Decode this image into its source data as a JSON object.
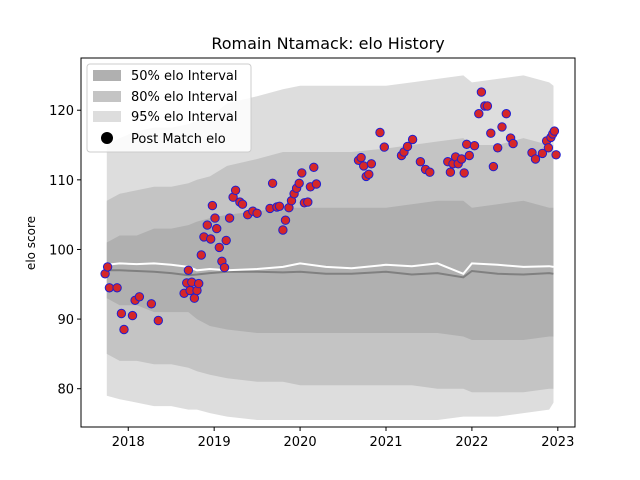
{
  "chart_data": {
    "type": "scatter",
    "title": "Romain Ntamack: elo History",
    "xlabel": "",
    "ylabel": "elo score",
    "xlim": [
      2017.45,
      2023.2
    ],
    "ylim": [
      74.5,
      127.5
    ],
    "x_ticks": [
      2018,
      2019,
      2020,
      2021,
      2022,
      2023
    ],
    "x_tick_labels": [
      "2018",
      "2019",
      "2020",
      "2021",
      "2022",
      "2023"
    ],
    "y_ticks": [
      80,
      90,
      100,
      110,
      120
    ],
    "y_tick_labels": [
      "80",
      "90",
      "100",
      "110",
      "120"
    ],
    "legend": {
      "placement": "top-left",
      "entries": [
        {
          "label": "50% elo Interval",
          "color": "#b0b0b0",
          "kind": "patch"
        },
        {
          "label": "80% elo Interval",
          "color": "#c4c4c4",
          "kind": "patch"
        },
        {
          "label": "95% elo Interval",
          "color": "#dddddd",
          "kind": "patch"
        },
        {
          "label": "Post Match elo",
          "color": "#000000",
          "kind": "marker"
        }
      ]
    },
    "bands": {
      "x": [
        2017.75,
        2017.9,
        2018.1,
        2018.3,
        2018.5,
        2018.7,
        2018.8,
        2018.95,
        2019.15,
        2019.5,
        2019.8,
        2020.0,
        2020.3,
        2020.6,
        2021.0,
        2021.3,
        2021.6,
        2021.9,
        2022.0,
        2022.3,
        2022.6,
        2022.9,
        2022.95
      ],
      "p95_high": [
        115,
        116,
        117,
        117.5,
        117.5,
        118,
        118.5,
        119,
        121,
        122,
        123,
        123.5,
        123.5,
        123.5,
        123.5,
        124,
        124.5,
        125,
        124,
        124.5,
        125,
        124,
        123.5
      ],
      "p80_high": [
        107,
        108,
        108.5,
        109,
        109,
        109.5,
        110,
        110.5,
        112,
        113,
        114,
        114,
        114,
        114,
        114.5,
        115,
        115.5,
        116,
        115,
        115,
        116,
        115,
        115
      ],
      "p50_high": [
        101,
        102,
        102,
        103,
        103,
        103.5,
        104,
        104.5,
        105,
        105.5,
        106,
        106,
        106,
        106,
        106,
        106.5,
        107,
        107,
        106,
        106.5,
        107,
        106,
        106
      ],
      "p50_low": [
        93,
        92,
        92,
        91,
        91,
        91,
        90,
        89,
        88.5,
        88,
        88,
        88,
        88,
        88,
        88,
        88,
        88,
        87.5,
        87,
        87,
        87,
        87.5,
        87.5
      ],
      "p80_low": [
        85,
        84,
        84,
        83.5,
        83.5,
        83,
        82.5,
        82,
        81.5,
        81,
        81,
        80.5,
        80.5,
        80.5,
        80.5,
        80.5,
        80,
        80,
        79.5,
        79.5,
        79.5,
        80,
        80
      ],
      "p95_low": [
        79,
        78.5,
        78,
        77.5,
        77.5,
        77,
        77,
        76.5,
        76,
        75.5,
        75.5,
        75.5,
        75.5,
        75.5,
        75.5,
        75.5,
        75.5,
        76,
        76,
        76,
        76.5,
        77,
        78
      ],
      "white_line": [
        97.8,
        98.0,
        97.9,
        98.0,
        97.8,
        97.5,
        97.0,
        97.2,
        97.0,
        97.2,
        97.5,
        98.0,
        97.5,
        97.3,
        97.8,
        97.6,
        98.0,
        96.5,
        98.0,
        97.8,
        97.5,
        97.6,
        97.5
      ],
      "gray_line": [
        97.0,
        97.0,
        96.9,
        96.8,
        96.6,
        96.3,
        96.4,
        96.6,
        96.8,
        96.8,
        96.7,
        96.8,
        96.5,
        96.5,
        96.8,
        96.4,
        96.6,
        96.0,
        96.9,
        96.5,
        96.4,
        96.6,
        96.5
      ]
    },
    "points": {
      "x": [
        2017.73,
        2017.76,
        2017.78,
        2017.87,
        2017.92,
        2017.95,
        2018.05,
        2018.08,
        2018.13,
        2018.27,
        2018.35,
        2018.65,
        2018.68,
        2018.7,
        2018.72,
        2018.74,
        2018.77,
        2018.8,
        2018.82,
        2018.85,
        2018.88,
        2018.92,
        2018.96,
        2018.98,
        2019.01,
        2019.03,
        2019.06,
        2019.09,
        2019.12,
        2019.14,
        2019.18,
        2019.22,
        2019.25,
        2019.3,
        2019.33,
        2019.39,
        2019.45,
        2019.5,
        2019.65,
        2019.68,
        2019.73,
        2019.76,
        2019.8,
        2019.83,
        2019.87,
        2019.9,
        2019.93,
        2019.96,
        2019.99,
        2020.02,
        2020.05,
        2020.09,
        2020.12,
        2020.16,
        2020.19,
        2020.68,
        2020.71,
        2020.74,
        2020.77,
        2020.8,
        2020.83,
        2020.93,
        2020.98,
        2021.18,
        2021.21,
        2021.25,
        2021.31,
        2021.4,
        2021.46,
        2021.51,
        2021.72,
        2021.75,
        2021.78,
        2021.81,
        2021.84,
        2021.88,
        2021.91,
        2021.94,
        2021.97,
        2022.03,
        2022.08,
        2022.11,
        2022.15,
        2022.18,
        2022.22,
        2022.25,
        2022.3,
        2022.35,
        2022.4,
        2022.45,
        2022.48,
        2022.7,
        2022.74,
        2022.82,
        2022.87,
        2022.89,
        2022.92,
        2022.94,
        2022.96,
        2022.98
      ],
      "y": [
        96.5,
        97.5,
        94.5,
        94.5,
        90.8,
        88.5,
        90.5,
        92.7,
        93.2,
        92.2,
        89.8,
        93.7,
        95.2,
        97.0,
        94.1,
        95.3,
        93.0,
        94.1,
        95.1,
        99.2,
        101.8,
        103.5,
        101.5,
        106.3,
        104.5,
        103.0,
        100.3,
        98.3,
        97.4,
        101.3,
        104.5,
        107.5,
        108.5,
        106.8,
        106.5,
        105.0,
        105.5,
        105.2,
        105.9,
        109.5,
        106.1,
        106.2,
        102.8,
        104.2,
        106.0,
        107.0,
        108.0,
        108.8,
        109.5,
        111.0,
        106.7,
        106.8,
        109.0,
        111.8,
        109.4,
        112.8,
        113.2,
        112.0,
        110.5,
        110.8,
        112.3,
        116.8,
        114.7,
        113.5,
        114.0,
        114.8,
        115.8,
        112.6,
        111.5,
        111.1,
        112.6,
        111.1,
        112.3,
        113.3,
        112.3,
        113.0,
        111.0,
        115.1,
        113.5,
        114.9,
        119.5,
        122.6,
        120.6,
        120.6,
        116.7,
        111.9,
        114.6,
        117.6,
        119.5,
        116.0,
        115.2,
        113.9,
        113.0,
        113.8,
        115.6,
        114.6,
        116.1,
        116.6,
        117.0,
        113.6
      ],
      "fill_color": "#d62728",
      "edge_color": "#1f1fd0"
    }
  }
}
